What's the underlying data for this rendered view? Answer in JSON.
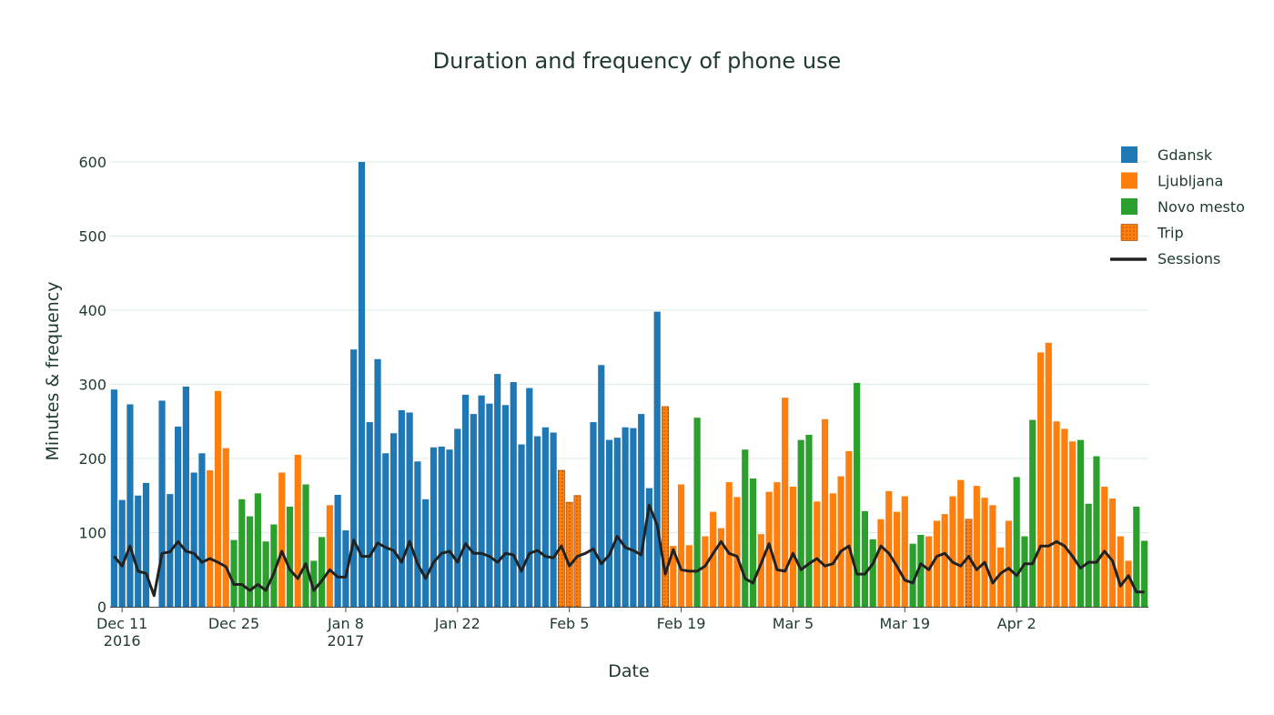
{
  "chart_data": {
    "type": "bar",
    "title": "Duration and frequency of phone use",
    "xlabel": "Date",
    "ylabel": "Minutes & frequency",
    "ylim": [
      0,
      620
    ],
    "yticks": [
      0,
      100,
      200,
      300,
      400,
      500,
      600
    ],
    "grid": true,
    "legend_position": "top-right",
    "x_start": "2016-12-10",
    "xticks": [
      {
        "date": "2016-12-11",
        "label": "Dec 11",
        "sublabel": "2016"
      },
      {
        "date": "2016-12-25",
        "label": "Dec 25",
        "sublabel": ""
      },
      {
        "date": "2017-01-08",
        "label": "Jan 8",
        "sublabel": "2017"
      },
      {
        "date": "2017-01-22",
        "label": "Jan 22",
        "sublabel": ""
      },
      {
        "date": "2017-02-05",
        "label": "Feb 5",
        "sublabel": ""
      },
      {
        "date": "2017-02-19",
        "label": "Feb 19",
        "sublabel": ""
      },
      {
        "date": "2017-03-05",
        "label": "Mar 5",
        "sublabel": ""
      },
      {
        "date": "2017-03-19",
        "label": "Mar 19",
        "sublabel": ""
      },
      {
        "date": "2017-04-02",
        "label": "Apr 2",
        "sublabel": ""
      }
    ],
    "series": [
      {
        "name": "Gdansk",
        "color": "#1f77b4",
        "kind": "bar"
      },
      {
        "name": "Ljubljana",
        "color": "#ff7f0e",
        "kind": "bar"
      },
      {
        "name": "Novo mesto",
        "color": "#2ca02c",
        "kind": "bar"
      },
      {
        "name": "Trip",
        "color": "#ff7f0e",
        "kind": "bar",
        "pattern": "dotted"
      },
      {
        "name": "Sessions",
        "color": "#222222",
        "kind": "line"
      }
    ],
    "location_codes": {
      "G": "Gdansk",
      "L": "Ljubljana",
      "N": "Novo mesto",
      "T": "Trip"
    },
    "days": [
      {
        "v": 293,
        "loc": "G",
        "s": 68
      },
      {
        "v": 144,
        "loc": "G",
        "s": 55
      },
      {
        "v": 273,
        "loc": "G",
        "s": 82
      },
      {
        "v": 150,
        "loc": "G",
        "s": 48
      },
      {
        "v": 167,
        "loc": "G",
        "s": 45
      },
      {
        "v": 0,
        "loc": "G",
        "s": 15
      },
      {
        "v": 278,
        "loc": "G",
        "s": 72
      },
      {
        "v": 152,
        "loc": "G",
        "s": 74
      },
      {
        "v": 243,
        "loc": "G",
        "s": 88
      },
      {
        "v": 297,
        "loc": "G",
        "s": 75
      },
      {
        "v": 181,
        "loc": "G",
        "s": 72
      },
      {
        "v": 207,
        "loc": "G",
        "s": 60
      },
      {
        "v": 184,
        "loc": "L",
        "s": 65
      },
      {
        "v": 291,
        "loc": "L",
        "s": 60
      },
      {
        "v": 214,
        "loc": "L",
        "s": 54
      },
      {
        "v": 90,
        "loc": "N",
        "s": 30
      },
      {
        "v": 145,
        "loc": "N",
        "s": 30
      },
      {
        "v": 122,
        "loc": "N",
        "s": 22
      },
      {
        "v": 153,
        "loc": "N",
        "s": 30
      },
      {
        "v": 88,
        "loc": "N",
        "s": 22
      },
      {
        "v": 111,
        "loc": "N",
        "s": 45
      },
      {
        "v": 181,
        "loc": "L",
        "s": 75
      },
      {
        "v": 135,
        "loc": "N",
        "s": 50
      },
      {
        "v": 205,
        "loc": "L",
        "s": 38
      },
      {
        "v": 165,
        "loc": "N",
        "s": 58
      },
      {
        "v": 62,
        "loc": "N",
        "s": 22
      },
      {
        "v": 94,
        "loc": "N",
        "s": 35
      },
      {
        "v": 137,
        "loc": "L",
        "s": 50
      },
      {
        "v": 151,
        "loc": "G",
        "s": 40
      },
      {
        "v": 103,
        "loc": "G",
        "s": 40
      },
      {
        "v": 347,
        "loc": "G",
        "s": 90
      },
      {
        "v": 600,
        "loc": "G",
        "s": 68
      },
      {
        "v": 249,
        "loc": "G",
        "s": 68
      },
      {
        "v": 334,
        "loc": "G",
        "s": 86
      },
      {
        "v": 207,
        "loc": "G",
        "s": 80
      },
      {
        "v": 234,
        "loc": "G",
        "s": 76
      },
      {
        "v": 265,
        "loc": "G",
        "s": 60
      },
      {
        "v": 262,
        "loc": "G",
        "s": 88
      },
      {
        "v": 196,
        "loc": "G",
        "s": 58
      },
      {
        "v": 145,
        "loc": "G",
        "s": 38
      },
      {
        "v": 215,
        "loc": "G",
        "s": 60
      },
      {
        "v": 216,
        "loc": "G",
        "s": 72
      },
      {
        "v": 212,
        "loc": "G",
        "s": 75
      },
      {
        "v": 240,
        "loc": "G",
        "s": 60
      },
      {
        "v": 286,
        "loc": "G",
        "s": 85
      },
      {
        "v": 260,
        "loc": "G",
        "s": 72
      },
      {
        "v": 285,
        "loc": "G",
        "s": 72
      },
      {
        "v": 274,
        "loc": "G",
        "s": 68
      },
      {
        "v": 314,
        "loc": "G",
        "s": 60
      },
      {
        "v": 272,
        "loc": "G",
        "s": 72
      },
      {
        "v": 303,
        "loc": "G",
        "s": 70
      },
      {
        "v": 219,
        "loc": "G",
        "s": 48
      },
      {
        "v": 295,
        "loc": "G",
        "s": 72
      },
      {
        "v": 230,
        "loc": "G",
        "s": 76
      },
      {
        "v": 242,
        "loc": "G",
        "s": 68
      },
      {
        "v": 235,
        "loc": "G",
        "s": 66
      },
      {
        "v": 184,
        "loc": "T",
        "s": 82
      },
      {
        "v": 141,
        "loc": "T",
        "s": 55
      },
      {
        "v": 150,
        "loc": "T",
        "s": 68
      },
      {
        "v": 0,
        "loc": "G",
        "s": 72
      },
      {
        "v": 249,
        "loc": "G",
        "s": 78
      },
      {
        "v": 326,
        "loc": "G",
        "s": 58
      },
      {
        "v": 225,
        "loc": "G",
        "s": 70
      },
      {
        "v": 228,
        "loc": "G",
        "s": 95
      },
      {
        "v": 242,
        "loc": "G",
        "s": 80
      },
      {
        "v": 241,
        "loc": "G",
        "s": 76
      },
      {
        "v": 260,
        "loc": "G",
        "s": 70
      },
      {
        "v": 160,
        "loc": "G",
        "s": 137
      },
      {
        "v": 398,
        "loc": "G",
        "s": 110
      },
      {
        "v": 270,
        "loc": "T",
        "s": 44
      },
      {
        "v": 82,
        "loc": "L",
        "s": 77
      },
      {
        "v": 165,
        "loc": "L",
        "s": 50
      },
      {
        "v": 83,
        "loc": "L",
        "s": 48
      },
      {
        "v": 255,
        "loc": "N",
        "s": 48
      },
      {
        "v": 95,
        "loc": "L",
        "s": 55
      },
      {
        "v": 128,
        "loc": "L",
        "s": 72
      },
      {
        "v": 106,
        "loc": "L",
        "s": 88
      },
      {
        "v": 168,
        "loc": "L",
        "s": 72
      },
      {
        "v": 148,
        "loc": "L",
        "s": 68
      },
      {
        "v": 212,
        "loc": "N",
        "s": 38
      },
      {
        "v": 173,
        "loc": "N",
        "s": 32
      },
      {
        "v": 98,
        "loc": "L",
        "s": 58
      },
      {
        "v": 155,
        "loc": "L",
        "s": 85
      },
      {
        "v": 168,
        "loc": "L",
        "s": 50
      },
      {
        "v": 282,
        "loc": "L",
        "s": 48
      },
      {
        "v": 162,
        "loc": "L",
        "s": 72
      },
      {
        "v": 225,
        "loc": "N",
        "s": 50
      },
      {
        "v": 232,
        "loc": "N",
        "s": 58
      },
      {
        "v": 142,
        "loc": "L",
        "s": 65
      },
      {
        "v": 253,
        "loc": "L",
        "s": 55
      },
      {
        "v": 153,
        "loc": "L",
        "s": 58
      },
      {
        "v": 176,
        "loc": "L",
        "s": 75
      },
      {
        "v": 210,
        "loc": "L",
        "s": 82
      },
      {
        "v": 302,
        "loc": "N",
        "s": 44
      },
      {
        "v": 129,
        "loc": "N",
        "s": 44
      },
      {
        "v": 91,
        "loc": "N",
        "s": 58
      },
      {
        "v": 118,
        "loc": "L",
        "s": 82
      },
      {
        "v": 156,
        "loc": "L",
        "s": 72
      },
      {
        "v": 128,
        "loc": "L",
        "s": 55
      },
      {
        "v": 149,
        "loc": "L",
        "s": 36
      },
      {
        "v": 85,
        "loc": "N",
        "s": 32
      },
      {
        "v": 97,
        "loc": "N",
        "s": 58
      },
      {
        "v": 95,
        "loc": "L",
        "s": 50
      },
      {
        "v": 116,
        "loc": "L",
        "s": 68
      },
      {
        "v": 125,
        "loc": "L",
        "s": 72
      },
      {
        "v": 149,
        "loc": "L",
        "s": 60
      },
      {
        "v": 171,
        "loc": "L",
        "s": 55
      },
      {
        "v": 118,
        "loc": "T",
        "s": 68
      },
      {
        "v": 163,
        "loc": "L",
        "s": 50
      },
      {
        "v": 147,
        "loc": "L",
        "s": 60
      },
      {
        "v": 137,
        "loc": "L",
        "s": 32
      },
      {
        "v": 80,
        "loc": "L",
        "s": 45
      },
      {
        "v": 116,
        "loc": "L",
        "s": 52
      },
      {
        "v": 175,
        "loc": "N",
        "s": 42
      },
      {
        "v": 95,
        "loc": "N",
        "s": 58
      },
      {
        "v": 252,
        "loc": "N",
        "s": 58
      },
      {
        "v": 343,
        "loc": "L",
        "s": 82
      },
      {
        "v": 356,
        "loc": "L",
        "s": 82
      },
      {
        "v": 250,
        "loc": "L",
        "s": 88
      },
      {
        "v": 240,
        "loc": "L",
        "s": 82
      },
      {
        "v": 223,
        "loc": "L",
        "s": 68
      },
      {
        "v": 225,
        "loc": "N",
        "s": 52
      },
      {
        "v": 139,
        "loc": "N",
        "s": 60
      },
      {
        "v": 203,
        "loc": "N",
        "s": 60
      },
      {
        "v": 162,
        "loc": "L",
        "s": 75
      },
      {
        "v": 146,
        "loc": "L",
        "s": 62
      },
      {
        "v": 95,
        "loc": "L",
        "s": 28
      },
      {
        "v": 62,
        "loc": "L",
        "s": 42
      },
      {
        "v": 135,
        "loc": "N",
        "s": 20
      },
      {
        "v": 89,
        "loc": "N",
        "s": 20
      }
    ]
  }
}
